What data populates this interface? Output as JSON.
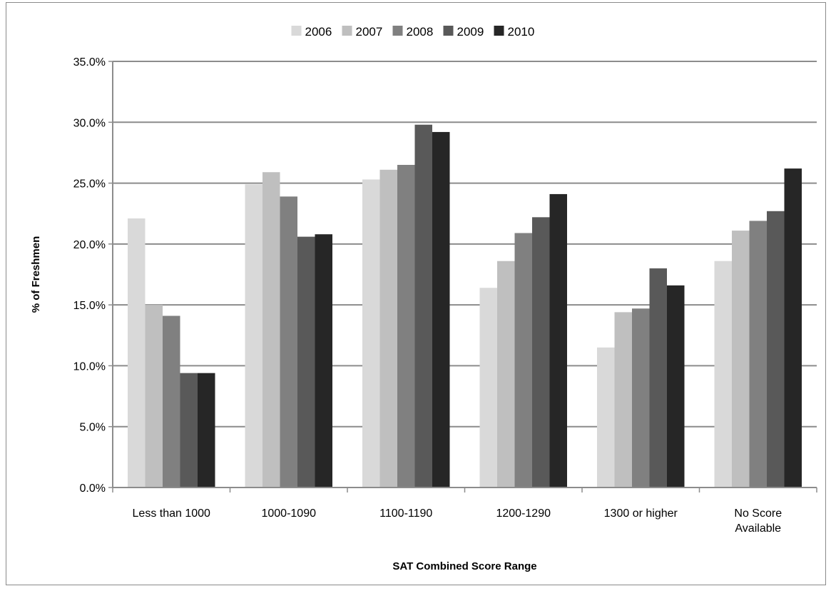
{
  "chart_data": {
    "type": "bar",
    "title": "",
    "xlabel": "SAT Combined Score Range",
    "ylabel": "% of Freshmen",
    "ylim": [
      0,
      35
    ],
    "ytick_step": 5,
    "ytick_format": "percent_1dp",
    "grid": true,
    "legend_position": "top",
    "categories": [
      [
        "Less than  1000"
      ],
      [
        "1000-1090"
      ],
      [
        "1100-1190"
      ],
      [
        "1200-1290"
      ],
      [
        "1300 or higher"
      ],
      [
        "No Score",
        "Available"
      ]
    ],
    "series": [
      {
        "name": "2006",
        "color": "#d9d9d9",
        "values": [
          22.1,
          24.9,
          25.3,
          16.4,
          11.5,
          18.6
        ]
      },
      {
        "name": "2007",
        "color": "#bfbfbf",
        "values": [
          15.0,
          25.9,
          26.1,
          18.6,
          14.4,
          21.1
        ]
      },
      {
        "name": "2008",
        "color": "#808080",
        "values": [
          14.1,
          23.9,
          26.5,
          20.9,
          14.7,
          21.9
        ]
      },
      {
        "name": "2009",
        "color": "#595959",
        "values": [
          9.4,
          20.6,
          29.8,
          22.2,
          18.0,
          22.7
        ]
      },
      {
        "name": "2010",
        "color": "#262626",
        "values": [
          9.4,
          20.8,
          29.2,
          24.1,
          16.6,
          26.2
        ]
      }
    ]
  }
}
